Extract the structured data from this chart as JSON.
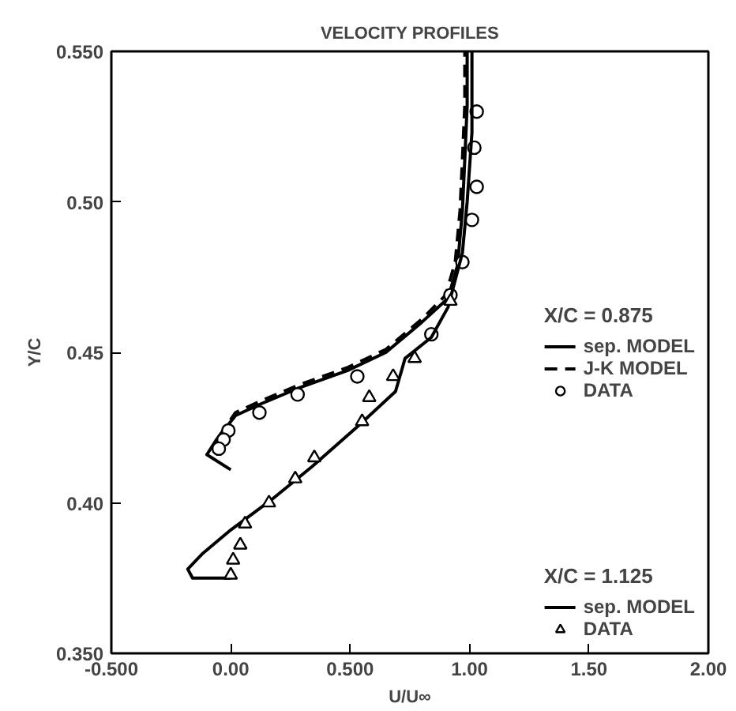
{
  "chart_data": {
    "type": "line",
    "title": "VELOCITY PROFILES",
    "xlabel": "U/U∞",
    "ylabel": "Y/C",
    "legend_title": [
      "X/C = 0.875",
      "X/C = 1.125"
    ],
    "xlim": [
      -0.5,
      2.0
    ],
    "ylim": [
      0.35,
      0.55
    ],
    "xticks": [
      {
        "value": -0.5,
        "label": "-0.500"
      },
      {
        "value": 0,
        "label": "0.00"
      },
      {
        "value": 0.5,
        "label": "0.500"
      },
      {
        "value": 1,
        "label": "1.00"
      },
      {
        "value": 1.5,
        "label": "1.50"
      },
      {
        "value": 2,
        "label": "2.00"
      }
    ],
    "yticks": [
      {
        "value": 0.35,
        "label": "0.350"
      },
      {
        "value": 0.4,
        "label": "0.40"
      },
      {
        "value": 0.45,
        "label": "0.45"
      },
      {
        "value": 0.5,
        "label": "0.50"
      },
      {
        "value": 0.55,
        "label": "0.550"
      }
    ],
    "grid": false,
    "legend": "bottom right",
    "series": [
      {
        "name": "sep. MODEL",
        "line_style": "solid",
        "color": "#000000",
        "x": [
          0.0,
          -0.1,
          -0.06,
          0.02,
          0.13,
          0.28,
          0.49,
          0.65,
          0.8,
          0.91,
          0.95,
          0.97,
          0.98,
          0.99,
          0.99
        ],
        "values": [
          0.411,
          0.416,
          0.421,
          0.429,
          0.433,
          0.438,
          0.444,
          0.45,
          0.46,
          0.468,
          0.479,
          0.497,
          0.514,
          0.532,
          0.55
        ]
      },
      {
        "name": "J-K MODEL",
        "line_style": "dashed",
        "color": "#000000",
        "x": [
          -0.05,
          0.02,
          0.13,
          0.28,
          0.49,
          0.65,
          0.8,
          0.9,
          0.94,
          0.96,
          0.97,
          0.98,
          0.98
        ],
        "values": [
          0.422,
          0.43,
          0.434,
          0.439,
          0.445,
          0.451,
          0.461,
          0.469,
          0.48,
          0.497,
          0.514,
          0.532,
          0.55
        ]
      },
      {
        "name": "DATA",
        "type": "scatter",
        "marker": "circle",
        "color": "#000000",
        "x": [
          1.03,
          1.02,
          1.03,
          1.01,
          0.97,
          0.92,
          0.84,
          0.53,
          0.28,
          0.12,
          -0.01,
          -0.03,
          -0.05
        ],
        "values": [
          0.53,
          0.518,
          0.505,
          0.494,
          0.48,
          0.469,
          0.456,
          0.442,
          0.436,
          0.43,
          0.424,
          0.421,
          0.418
        ]
      },
      {
        "name": "sep. MODEL",
        "line_style": "solid",
        "color": "#000000",
        "x": [
          0.0,
          -0.16,
          -0.18,
          -0.12,
          0.0,
          0.17,
          0.34,
          0.54,
          0.69,
          0.73,
          0.84,
          0.91,
          0.97,
          0.99,
          1.01,
          1.01
        ],
        "values": [
          0.375,
          0.375,
          0.378,
          0.383,
          0.391,
          0.401,
          0.412,
          0.426,
          0.437,
          0.448,
          0.455,
          0.465,
          0.483,
          0.5,
          0.523,
          0.55
        ]
      },
      {
        "name": "DATA",
        "type": "scatter",
        "marker": "triangle",
        "color": "#000000",
        "x": [
          0.92,
          0.77,
          0.68,
          0.58,
          0.55,
          0.35,
          0.27,
          0.16,
          0.06,
          0.04,
          0.01,
          0.0
        ],
        "values": [
          0.467,
          0.448,
          0.442,
          0.435,
          0.427,
          0.415,
          0.408,
          0.4,
          0.393,
          0.386,
          0.381,
          0.376
        ]
      }
    ]
  }
}
